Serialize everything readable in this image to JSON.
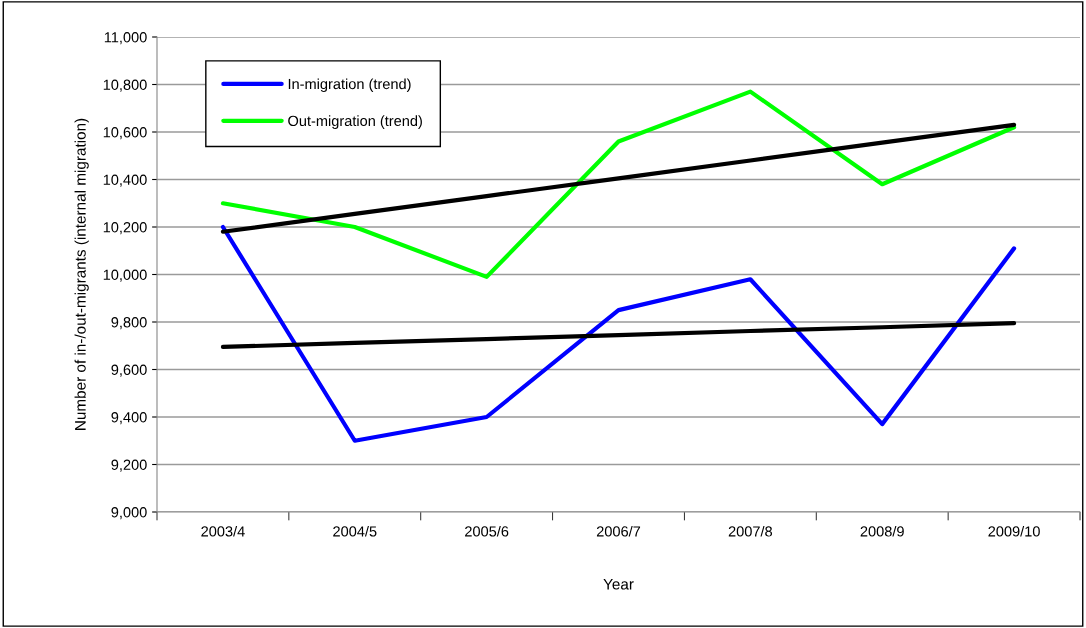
{
  "chart_data": {
    "type": "line",
    "xlabel": "Year",
    "ylabel": "Number of in-/out-migrants (internal migration)",
    "categories": [
      "2003/4",
      "2004/5",
      "2005/6",
      "2006/7",
      "2007/8",
      "2008/9",
      "2009/10"
    ],
    "series": [
      {
        "name": "In-migration (trend)",
        "color": "#0000ff",
        "values": [
          10200,
          9300,
          9400,
          9850,
          9980,
          9370,
          10110
        ]
      },
      {
        "name": "Out-migration (trend)",
        "color": "#00ff00",
        "values": [
          10300,
          10200,
          9990,
          10560,
          10770,
          10380,
          10620
        ]
      },
      {
        "color": "#000000",
        "values": [
          9695,
          9712,
          9728,
          9745,
          9762,
          9778,
          9795
        ]
      },
      {
        "color": "#000000",
        "values": [
          10180,
          10255,
          10330,
          10405,
          10480,
          10555,
          10630
        ]
      }
    ],
    "ylim": [
      9000,
      11000
    ],
    "yticks": [
      {
        "value": 9000,
        "label": "9,000"
      },
      {
        "value": 9200,
        "label": "9,200"
      },
      {
        "value": 9400,
        "label": "9,400"
      },
      {
        "value": 9600,
        "label": "9,600"
      },
      {
        "value": 9800,
        "label": "9,800"
      },
      {
        "value": 10000,
        "label": "10,000"
      },
      {
        "value": 10200,
        "label": "10,200"
      },
      {
        "value": 10400,
        "label": "10,400"
      },
      {
        "value": 10600,
        "label": "10,600"
      },
      {
        "value": 10800,
        "label": "10,800"
      },
      {
        "value": 11000,
        "label": "11,000"
      }
    ],
    "grid": "y",
    "legend": "top left"
  }
}
